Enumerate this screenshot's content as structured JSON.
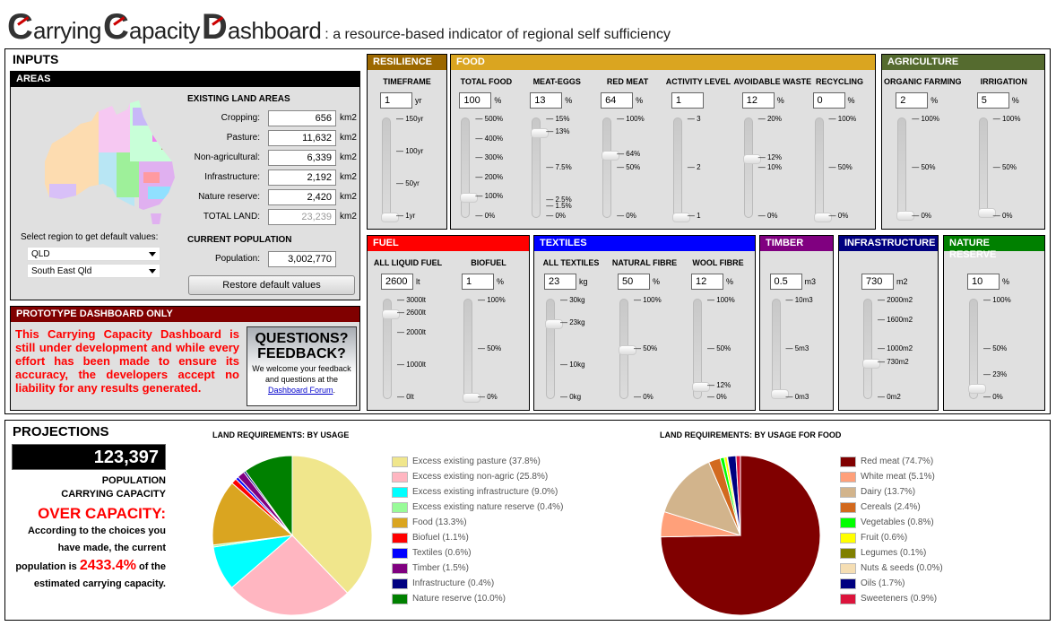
{
  "title": {
    "words": [
      "Carrying",
      "Capacity",
      "Dashboard"
    ],
    "subtitle": ": a resource-based indicator of regional self sufficiency"
  },
  "inputs": {
    "heading": "INPUTS",
    "areas": {
      "header": "AREAS",
      "existing_heading": "EXISTING LAND AREAS",
      "rows": [
        {
          "label": "Cropping:",
          "value": "656",
          "unit": "km2"
        },
        {
          "label": "Pasture:",
          "value": "11,632",
          "unit": "km2"
        },
        {
          "label": "Non-agricultural:",
          "value": "6,339",
          "unit": "km2"
        },
        {
          "label": "Infrastructure:",
          "value": "2,192",
          "unit": "km2"
        },
        {
          "label": "Nature reserve:",
          "value": "2,420",
          "unit": "km2"
        },
        {
          "label": "TOTAL LAND:",
          "value": "23,239",
          "unit": "km2"
        }
      ],
      "region_prompt": "Select region to get default values:",
      "region_select": "QLD",
      "subregion_select": "South East Qld",
      "population_heading": "CURRENT POPULATION",
      "population_label": "Population:",
      "population_value": "3,002,770",
      "restore_label": "Restore default values"
    },
    "prototype": {
      "header": "PROTOTYPE DASHBOARD ONLY",
      "text": "This Carrying Capacity Dashboard is still under development and while every effort has been made to ensure its accuracy, the developers accept no liability for any results generated.",
      "feedback_title_1": "QUESTIONS?",
      "feedback_title_2": "FEEDBACK?",
      "feedback_text": "We welcome your feedback and questions at the ",
      "feedback_link": "Dashboard Forum",
      "feedback_end": "."
    }
  },
  "panels": [
    {
      "id": "resilience",
      "title": "RESILIENCE",
      "color": "#9c6800",
      "sliders": [
        {
          "label": "TIMEFRAME",
          "value": "1",
          "unit": "yr",
          "min": 1,
          "max": 150,
          "ticks": [
            [
              150,
              "150yr"
            ],
            [
              100,
              "100yr"
            ],
            [
              50,
              "50yr"
            ],
            [
              1,
              "1yr"
            ]
          ]
        }
      ]
    },
    {
      "id": "food",
      "title": "FOOD",
      "color": "#daa520",
      "sliders": [
        {
          "label": "TOTAL FOOD",
          "value": "100",
          "unit": "%",
          "min": 0,
          "max": 500,
          "ticks": [
            [
              500,
              "500%"
            ],
            [
              400,
              "400%"
            ],
            [
              300,
              "300%"
            ],
            [
              200,
              "200%"
            ],
            [
              100,
              "100%"
            ],
            [
              0,
              "0%"
            ]
          ]
        },
        {
          "label": "MEAT-EGGS",
          "value": "13",
          "unit": "%",
          "min": 0,
          "max": 15,
          "ticks": [
            [
              15,
              "15%"
            ],
            [
              13,
              "13%"
            ],
            [
              7.5,
              "7.5%"
            ],
            [
              2.5,
              "2.5%"
            ],
            [
              1.5,
              "1.5%"
            ],
            [
              0,
              "0%"
            ]
          ]
        },
        {
          "label": "RED MEAT",
          "value": "64",
          "unit": "%",
          "min": 0,
          "max": 100,
          "ticks": [
            [
              100,
              "100%"
            ],
            [
              64,
              "64%"
            ],
            [
              50,
              "50%"
            ],
            [
              0,
              "0%"
            ]
          ]
        },
        {
          "label": "ACTIVITY LEVEL",
          "value": "1",
          "unit": "",
          "min": 1,
          "max": 3,
          "ticks": [
            [
              3,
              "3"
            ],
            [
              2,
              "2"
            ],
            [
              1,
              "1"
            ]
          ]
        },
        {
          "label": "AVOIDABLE WASTE",
          "value": "12",
          "unit": "%",
          "min": 0,
          "max": 20,
          "ticks": [
            [
              20,
              "20%"
            ],
            [
              12,
              "12%"
            ],
            [
              10,
              "10%"
            ],
            [
              0,
              "0%"
            ]
          ]
        },
        {
          "label": "RECYCLING",
          "value": "0",
          "unit": "%",
          "min": 0,
          "max": 100,
          "ticks": [
            [
              100,
              "100%"
            ],
            [
              50,
              "50%"
            ],
            [
              0,
              "0%"
            ]
          ]
        }
      ]
    },
    {
      "id": "agriculture",
      "title": "AGRICULTURE",
      "color": "#556b2f",
      "sliders": [
        {
          "label": "ORGANIC FARMING",
          "value": "2",
          "unit": "%",
          "min": 0,
          "max": 100,
          "ticks": [
            [
              100,
              "100%"
            ],
            [
              50,
              "50%"
            ],
            [
              0,
              "0%"
            ]
          ]
        },
        {
          "label": "IRRIGATION",
          "value": "5",
          "unit": "%",
          "min": 0,
          "max": 100,
          "ticks": [
            [
              100,
              "100%"
            ],
            [
              50,
              "50%"
            ],
            [
              0,
              "0%"
            ]
          ]
        }
      ]
    },
    {
      "id": "fuel",
      "title": "FUEL",
      "color": "#ff0000",
      "sliders": [
        {
          "label": "ALL LIQUID FUEL",
          "value": "2600",
          "unit": "lt",
          "min": 0,
          "max": 3000,
          "ticks": [
            [
              3000,
              "3000lt"
            ],
            [
              2600,
              "2600lt"
            ],
            [
              2000,
              "2000lt"
            ],
            [
              1000,
              "1000lt"
            ],
            [
              0,
              "0lt"
            ]
          ]
        },
        {
          "label": "BIOFUEL",
          "value": "1",
          "unit": "%",
          "min": 0,
          "max": 100,
          "ticks": [
            [
              100,
              "100%"
            ],
            [
              50,
              "50%"
            ],
            [
              0,
              "0%"
            ]
          ]
        }
      ]
    },
    {
      "id": "textiles",
      "title": "TEXTILES",
      "color": "#0000ff",
      "sliders": [
        {
          "label": "ALL TEXTILES",
          "value": "23",
          "unit": "kg",
          "min": 0,
          "max": 30,
          "ticks": [
            [
              30,
              "30kg"
            ],
            [
              23,
              "23kg"
            ],
            [
              10,
              "10kg"
            ],
            [
              0,
              "0kg"
            ]
          ]
        },
        {
          "label": "NATURAL FIBRE",
          "value": "50",
          "unit": "%",
          "min": 0,
          "max": 100,
          "ticks": [
            [
              100,
              "100%"
            ],
            [
              50,
              "50%"
            ],
            [
              0,
              "0%"
            ]
          ]
        },
        {
          "label": "WOOL FIBRE",
          "value": "12",
          "unit": "%",
          "min": 0,
          "max": 100,
          "ticks": [
            [
              100,
              "100%"
            ],
            [
              50,
              "50%"
            ],
            [
              12,
              "12%"
            ],
            [
              0,
              "0%"
            ]
          ]
        }
      ]
    },
    {
      "id": "timber",
      "title": "TIMBER",
      "color": "#800080",
      "sliders": [
        {
          "label": "",
          "value": "0.5",
          "unit": "m3",
          "min": 0,
          "max": 10,
          "ticks": [
            [
              10,
              "10m3"
            ],
            [
              5,
              "5m3"
            ],
            [
              0,
              "0m3"
            ]
          ]
        }
      ]
    },
    {
      "id": "infrastructure",
      "title": "INFRASTRUCTURE",
      "color": "#000080",
      "sliders": [
        {
          "label": "",
          "value": "730",
          "unit": "m2",
          "min": 0,
          "max": 2000,
          "ticks": [
            [
              2000,
              "2000m2"
            ],
            [
              1600,
              "1600m2"
            ],
            [
              1000,
              "1000m2"
            ],
            [
              730,
              "730m2"
            ],
            [
              0,
              "0m2"
            ]
          ]
        }
      ]
    },
    {
      "id": "nature",
      "title": "NATURE RESERVE",
      "color": "#008000",
      "sliders": [
        {
          "label": "",
          "value": "10",
          "unit": "%",
          "min": 0,
          "max": 100,
          "ticks": [
            [
              100,
              "100%"
            ],
            [
              50,
              "50%"
            ],
            [
              23,
              "23%"
            ],
            [
              0,
              "0%"
            ]
          ]
        }
      ]
    }
  ],
  "projections": {
    "heading": "PROJECTIONS",
    "carrying_capacity": "123,397",
    "caption_1": "POPULATION",
    "caption_2": "CARRYING CAPACITY",
    "status": "OVER CAPACITY:",
    "text_1": "According to the choices you have made, the current population is ",
    "percent": "2433.4%",
    "text_2": " of the estimated carrying capacity."
  },
  "chart_data": [
    {
      "type": "pie",
      "title": "LAND REQUIREMENTS: BY USAGE",
      "start": "top",
      "direction": "clockwise",
      "categories": [
        "Excess existing pasture (37.8%)",
        "Excess existing non-agric (25.8%)",
        "Excess existing infrastructure (9.0%)",
        "Excess existing nature reserve (0.4%)",
        "Food (13.3%)",
        "Biofuel (1.1%)",
        "Textiles (0.6%)",
        "Timber (1.5%)",
        "Infrastructure (0.4%)",
        "Nature reserve (10.0%)"
      ],
      "values": [
        37.8,
        25.8,
        9.0,
        0.4,
        13.3,
        1.1,
        0.6,
        1.5,
        0.4,
        10.0
      ],
      "colors": [
        "#f0e68c",
        "#ffb6c1",
        "#00ffff",
        "#98fb98",
        "#daa520",
        "#ff0000",
        "#0000ff",
        "#800080",
        "#000080",
        "#008000"
      ]
    },
    {
      "type": "pie",
      "title": "LAND REQUIREMENTS: BY USAGE FOR FOOD",
      "start": "top",
      "direction": "clockwise",
      "categories": [
        "Red meat (74.7%)",
        "White meat (5.1%)",
        "Dairy (13.7%)",
        "Cereals (2.4%)",
        "Vegetables (0.8%)",
        "Fruit (0.6%)",
        "Legumes (0.1%)",
        "Nuts & seeds (0.0%)",
        "Oils (1.7%)",
        "Sweeteners (0.9%)"
      ],
      "values": [
        74.7,
        5.1,
        13.7,
        2.4,
        0.8,
        0.6,
        0.1,
        0.0,
        1.7,
        0.9
      ],
      "colors": [
        "#800000",
        "#ffa07a",
        "#d2b48c",
        "#d2691e",
        "#00ff00",
        "#ffff00",
        "#808000",
        "#f5deb3",
        "#000080",
        "#dc143c"
      ]
    }
  ]
}
